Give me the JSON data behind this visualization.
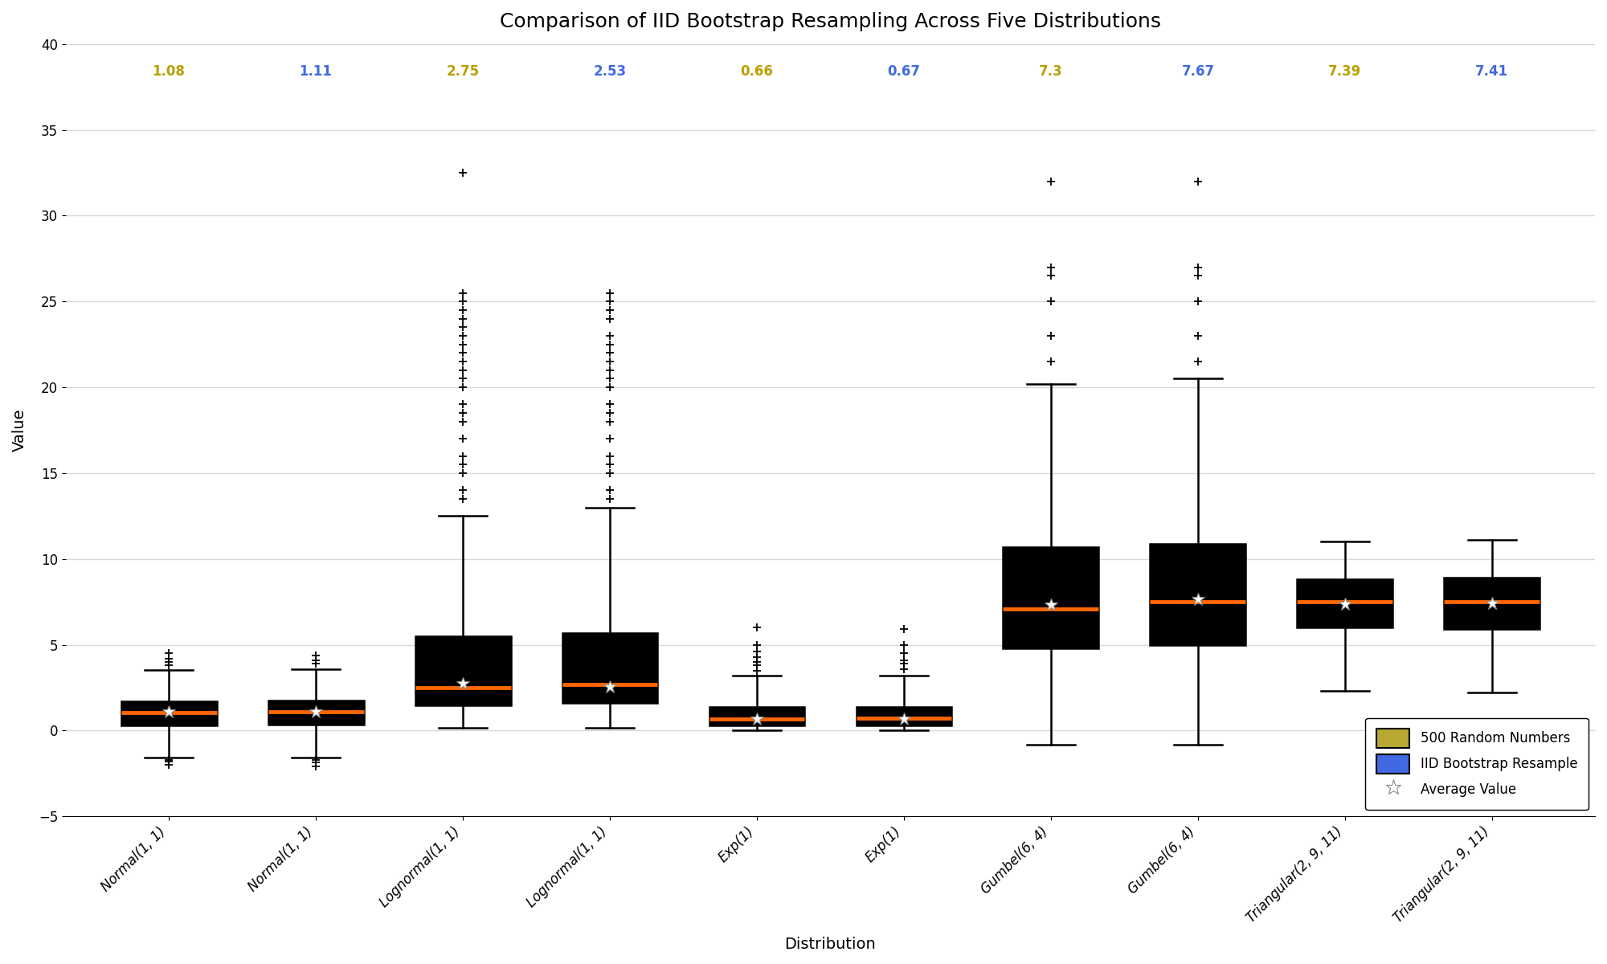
{
  "title": "Comparison of IID Bootstrap Resampling Across Five Distributions",
  "xlabel": "Distribution",
  "ylabel": "Value",
  "ylim": [
    -5,
    40
  ],
  "yticks": [
    -5,
    0,
    5,
    10,
    15,
    20,
    25,
    30,
    35,
    40
  ],
  "xlabels": [
    "Normal(1, 1)",
    "Normal(1, 1)",
    "Lognormal(1, 1)",
    "Lognormal(1, 1)",
    "Exp(1)",
    "Exp(1)",
    "Gumbel(6, 4)",
    "Gumbel(6, 4)",
    "Triangular(2, 9, 11)",
    "Triangular(2, 9, 11)"
  ],
  "means": [
    1.08,
    1.11,
    2.75,
    2.53,
    0.66,
    0.67,
    7.3,
    7.67,
    7.39,
    7.41
  ],
  "mean_colors": [
    "#b8a000",
    "#4169e1",
    "#b8a000",
    "#4169e1",
    "#b8a000",
    "#4169e1",
    "#b8a000",
    "#4169e1",
    "#b8a000",
    "#4169e1"
  ],
  "box_colors": [
    "#b8a832",
    "#4169e1",
    "#b8a832",
    "#4169e1",
    "#b8a832",
    "#4169e1",
    "#b8a832",
    "#4169e1",
    "#b8a832",
    "#4169e1"
  ],
  "median_color": "#ff6600",
  "whisker_color": "#000000",
  "flier_color": "#000000",
  "background_color": "#ffffff",
  "grid_color": "#d8d8d8",
  "title_fontsize": 18,
  "label_fontsize": 14,
  "tick_fontsize": 12,
  "mean_fontsize": 12,
  "box_stats": [
    {
      "q1": 0.32,
      "median": 1.05,
      "q3": 1.72,
      "whislo": -1.55,
      "whishi": 3.55,
      "mean": 1.08,
      "fliers_low": [
        -2.0,
        -1.8,
        -1.7
      ],
      "fliers_high": [
        3.8,
        4.0,
        4.2,
        4.5
      ]
    },
    {
      "q1": 0.35,
      "median": 1.1,
      "q3": 1.75,
      "whislo": -1.55,
      "whishi": 3.6,
      "mean": 1.11,
      "fliers_low": [
        -2.1,
        -1.85,
        -1.7
      ],
      "fliers_high": [
        3.9,
        4.1,
        4.35
      ]
    },
    {
      "q1": 1.45,
      "median": 2.5,
      "q3": 5.5,
      "whislo": 0.15,
      "whishi": 12.5,
      "mean": 2.75,
      "fliers_low": [],
      "fliers_high": [
        13.5,
        14.0,
        15.0,
        15.5,
        16.0,
        17.0,
        18.0,
        18.5,
        19.0,
        20.0,
        20.5,
        21.0,
        21.5,
        22.0,
        22.5,
        23.0,
        23.5,
        24.0,
        24.5,
        25.0,
        25.5,
        32.5
      ]
    },
    {
      "q1": 1.6,
      "median": 2.7,
      "q3": 5.7,
      "whislo": 0.15,
      "whishi": 13.0,
      "mean": 2.53,
      "fliers_low": [],
      "fliers_high": [
        13.5,
        14.0,
        15.0,
        15.5,
        16.0,
        17.0,
        18.0,
        18.5,
        19.0,
        20.0,
        20.5,
        21.0,
        21.5,
        22.0,
        22.5,
        23.0,
        24.0,
        24.5,
        25.0,
        25.5
      ]
    },
    {
      "q1": 0.29,
      "median": 0.68,
      "q3": 1.4,
      "whislo": 0.01,
      "whishi": 3.2,
      "mean": 0.66,
      "fliers_low": [],
      "fliers_high": [
        3.5,
        3.8,
        4.0,
        4.3,
        4.6,
        5.0,
        6.0
      ]
    },
    {
      "q1": 0.3,
      "median": 0.72,
      "q3": 1.4,
      "whislo": 0.01,
      "whishi": 3.2,
      "mean": 0.67,
      "fliers_low": [],
      "fliers_high": [
        3.6,
        3.9,
        4.1,
        4.5,
        5.0,
        5.9
      ]
    },
    {
      "q1": 4.8,
      "median": 7.1,
      "q3": 10.7,
      "whislo": -0.8,
      "whishi": 20.2,
      "mean": 7.3,
      "fliers_low": [],
      "fliers_high": [
        21.5,
        23.0,
        25.0,
        26.5,
        27.0,
        32.0
      ]
    },
    {
      "q1": 5.0,
      "median": 7.5,
      "q3": 10.9,
      "whislo": -0.8,
      "whishi": 20.5,
      "mean": 7.67,
      "fliers_low": [],
      "fliers_high": [
        21.5,
        23.0,
        25.0,
        26.5,
        27.0,
        32.0
      ]
    },
    {
      "q1": 6.0,
      "median": 7.5,
      "q3": 8.8,
      "whislo": 2.3,
      "whishi": 11.0,
      "mean": 7.39,
      "fliers_low": [],
      "fliers_high": []
    },
    {
      "q1": 5.9,
      "median": 7.5,
      "q3": 8.9,
      "whislo": 2.2,
      "whishi": 11.1,
      "mean": 7.41,
      "fliers_low": [],
      "fliers_high": []
    }
  ]
}
